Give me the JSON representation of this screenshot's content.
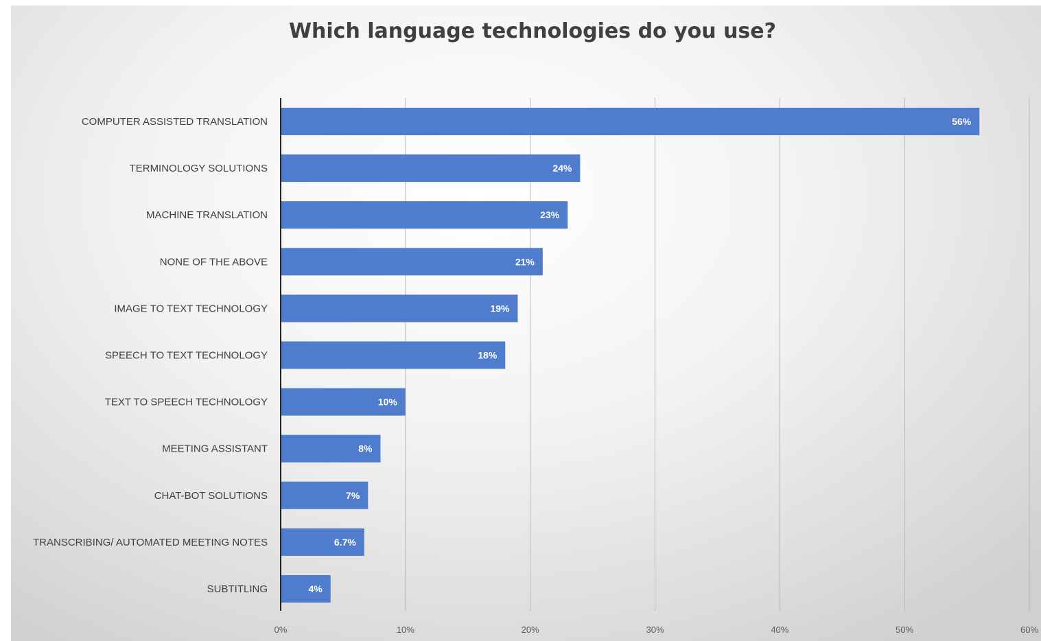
{
  "chart_data": {
    "type": "bar",
    "orientation": "horizontal",
    "title": "Which language technologies do you use?",
    "xlabel": "",
    "ylabel": "",
    "categories": [
      "COMPUTER ASSISTED TRANSLATION",
      "TERMINOLOGY SOLUTIONS",
      "MACHINE TRANSLATION",
      "NONE OF THE ABOVE",
      "IMAGE TO TEXT TECHNOLOGY",
      "SPEECH TO TEXT TECHNOLOGY",
      "TEXT TO SPEECH TECHNOLOGY",
      "MEETING ASSISTANT",
      "CHAT-BOT SOLUTIONS",
      "TRANSCRIBING/ AUTOMATED MEETING NOTES",
      "SUBTITLING"
    ],
    "values": [
      56,
      24,
      23,
      21,
      19,
      18,
      10,
      8,
      7,
      6.7,
      4
    ],
    "value_labels": [
      "56%",
      "24%",
      "23%",
      "21%",
      "19%",
      "18%",
      "10%",
      "8%",
      "7%",
      "6.7%",
      "4%"
    ],
    "xlim": [
      0,
      60
    ],
    "xticks": [
      "0%",
      "10%",
      "20%",
      "30%",
      "40%",
      "50%",
      "60%"
    ],
    "grid": "vertical",
    "legend": "none",
    "bar_color": "#4f7ccc",
    "axis_color": "#262626",
    "grid_color": "#b8b8b8"
  }
}
